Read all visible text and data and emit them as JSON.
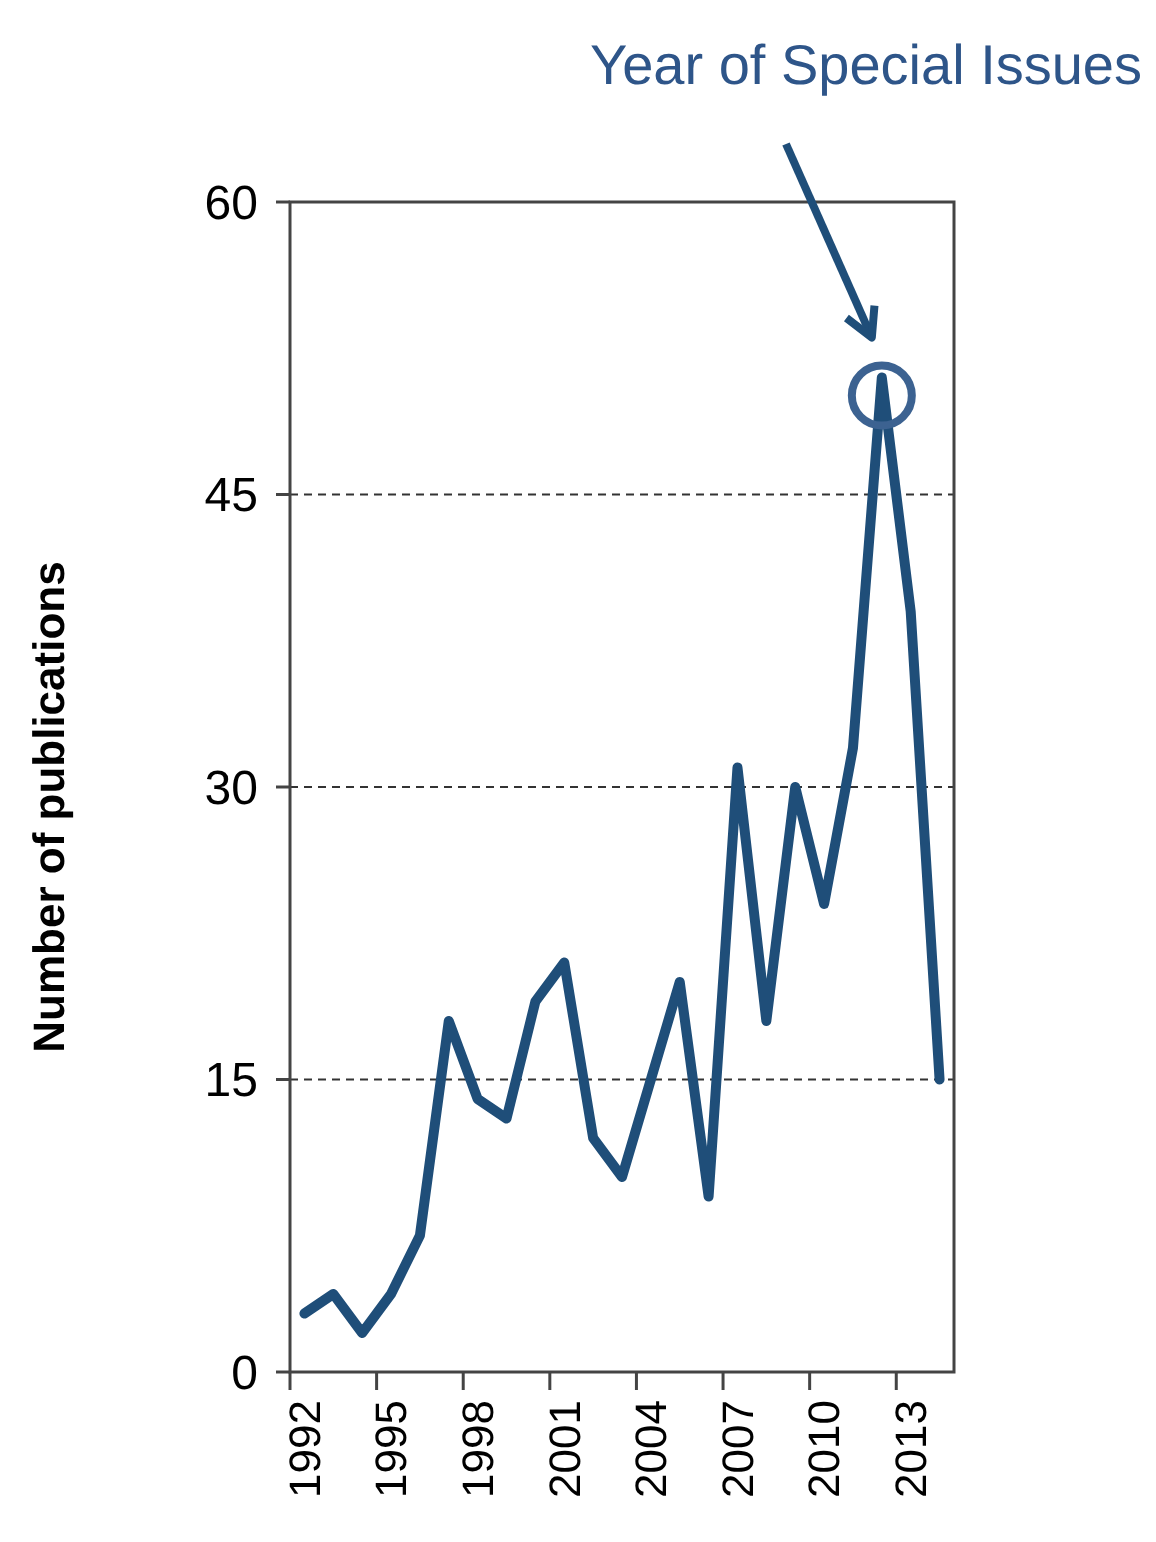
{
  "chart_data": {
    "type": "line",
    "ylabel": "Number of publications",
    "categories": [
      "1992",
      null,
      null,
      "1995",
      null,
      null,
      "1998",
      null,
      null,
      "2001",
      null,
      null,
      "2004",
      null,
      null,
      "2007",
      null,
      null,
      "2010",
      null,
      null,
      "2013",
      null
    ],
    "series": [
      {
        "color": "#1f4e79",
        "values": [
          3,
          4,
          2,
          4,
          7,
          18,
          14,
          13,
          19,
          21,
          12,
          10,
          15,
          20,
          9,
          31,
          18,
          30,
          24,
          32,
          51,
          39,
          15
        ]
      }
    ],
    "ylim": [
      0,
      60
    ],
    "yticks": [
      0,
      15,
      30,
      45,
      60
    ],
    "grid": "y",
    "marker": "none",
    "line_style": "solid",
    "annotations": [
      "Year of Special Issues"
    ]
  }
}
